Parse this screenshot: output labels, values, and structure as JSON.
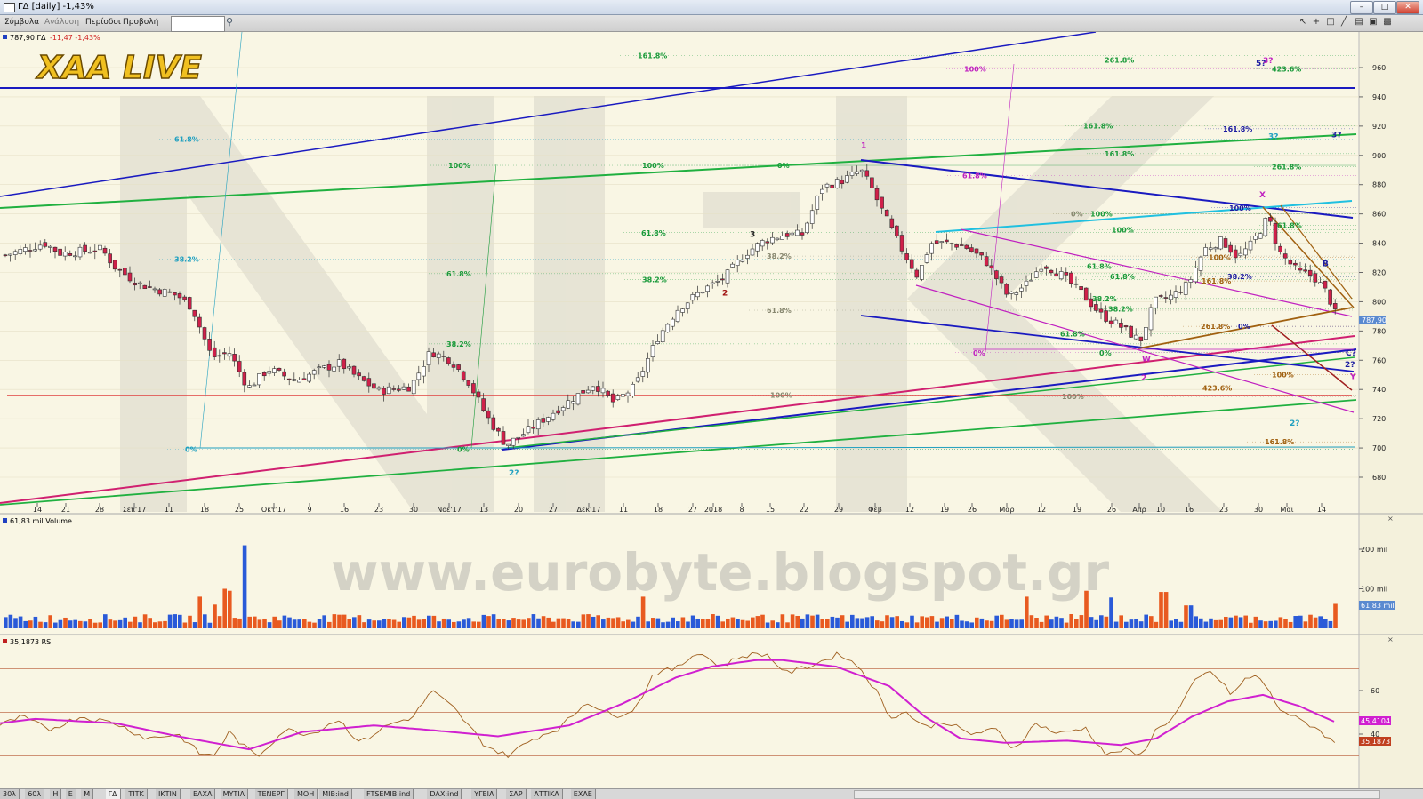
{
  "window": {
    "title": "ΓΔ [daily] -1,43%",
    "minimize": "–",
    "maximize": "□",
    "close": "✕"
  },
  "menu": {
    "items": [
      "Σύμβολα",
      "Ανάλυση",
      "Περίοδοι",
      "Προβολή"
    ],
    "symbol_value": ""
  },
  "toolbar": {
    "icons": [
      "cursor-icon",
      "crosshair-icon",
      "rectangle-icon",
      "line-icon",
      "layout-icon",
      "window-icon",
      "save-icon"
    ]
  },
  "price_panel": {
    "header": "787,90 ΓΔ",
    "change": "-11,47 -1,43%",
    "logo": "XAA LIVE",
    "watermark": "NK",
    "last_price_label": "787,90",
    "y_ticks": [
      {
        "v": 960,
        "t": "960"
      },
      {
        "v": 940,
        "t": "940"
      },
      {
        "v": 920,
        "t": "920"
      },
      {
        "v": 900,
        "t": "900"
      },
      {
        "v": 880,
        "t": "880"
      },
      {
        "v": 860,
        "t": "860"
      },
      {
        "v": 840,
        "t": "840"
      },
      {
        "v": 820,
        "t": "820"
      },
      {
        "v": 800,
        "t": "800"
      },
      {
        "v": 780,
        "t": "780"
      },
      {
        "v": 760,
        "t": "760"
      },
      {
        "v": 740,
        "t": "740"
      },
      {
        "v": 720,
        "t": "720"
      },
      {
        "v": 700,
        "t": "700"
      },
      {
        "v": 680,
        "t": "680"
      }
    ],
    "x_labels": [
      {
        "x": 42,
        "t": "14"
      },
      {
        "x": 74,
        "t": "21"
      },
      {
        "x": 112,
        "t": "28"
      },
      {
        "x": 151,
        "t": "Σεπ'17"
      },
      {
        "x": 190,
        "t": "11"
      },
      {
        "x": 230,
        "t": "18"
      },
      {
        "x": 269,
        "t": "25"
      },
      {
        "x": 308,
        "t": "Οκτ'17"
      },
      {
        "x": 348,
        "t": "9"
      },
      {
        "x": 387,
        "t": "16"
      },
      {
        "x": 426,
        "t": "23"
      },
      {
        "x": 465,
        "t": "30"
      },
      {
        "x": 505,
        "t": "Νοε'17"
      },
      {
        "x": 544,
        "t": "13"
      },
      {
        "x": 583,
        "t": "20"
      },
      {
        "x": 622,
        "t": "27"
      },
      {
        "x": 662,
        "t": "Δεκ'17"
      },
      {
        "x": 701,
        "t": "11"
      },
      {
        "x": 740,
        "t": "18"
      },
      {
        "x": 779,
        "t": "27"
      },
      {
        "x": 802,
        "t": "2018"
      },
      {
        "x": 834,
        "t": "8"
      },
      {
        "x": 866,
        "t": "15"
      },
      {
        "x": 904,
        "t": "22"
      },
      {
        "x": 943,
        "t": "29"
      },
      {
        "x": 984,
        "t": "Φεβ"
      },
      {
        "x": 1023,
        "t": "12"
      },
      {
        "x": 1062,
        "t": "19"
      },
      {
        "x": 1093,
        "t": "26"
      },
      {
        "x": 1132,
        "t": "Μαρ"
      },
      {
        "x": 1171,
        "t": "12"
      },
      {
        "x": 1211,
        "t": "19"
      },
      {
        "x": 1250,
        "t": "26"
      },
      {
        "x": 1281,
        "t": "Απρ"
      },
      {
        "x": 1305,
        "t": "10"
      },
      {
        "x": 1337,
        "t": "16"
      },
      {
        "x": 1376,
        "t": "23"
      },
      {
        "x": 1415,
        "t": "30"
      },
      {
        "x": 1447,
        "t": "Μαι"
      },
      {
        "x": 1486,
        "t": "14"
      }
    ],
    "fib_labels": [
      {
        "x": 717,
        "v": 970,
        "t": "161.8%",
        "c": "#1a9a3a"
      },
      {
        "x": 1242,
        "v": 967,
        "t": "261.8%",
        "c": "#1a9a3a"
      },
      {
        "x": 1084,
        "v": 961,
        "t": "100%",
        "c": "#c020c0"
      },
      {
        "x": 1430,
        "v": 961,
        "t": "423.6%",
        "c": "#1a9a3a"
      },
      {
        "x": 196,
        "v": 913,
        "t": "61.8%",
        "c": "#20a0c0"
      },
      {
        "x": 1218,
        "v": 922,
        "t": "161.8%",
        "c": "#1a9a3a"
      },
      {
        "x": 1375,
        "v": 920,
        "t": "161.8%",
        "c": "#1a1aa0"
      },
      {
        "x": 1242,
        "v": 903,
        "t": "161.8%",
        "c": "#1a9a3a"
      },
      {
        "x": 504,
        "v": 895,
        "t": "100%",
        "c": "#1a9a3a"
      },
      {
        "x": 722,
        "v": 895,
        "t": "100%",
        "c": "#1a9a3a"
      },
      {
        "x": 874,
        "v": 895,
        "t": "0%",
        "c": "#1a9a3a"
      },
      {
        "x": 1430,
        "v": 894,
        "t": "261.8%",
        "c": "#1a9a3a"
      },
      {
        "x": 1082,
        "v": 888,
        "t": "61.8%",
        "c": "#c020c0"
      },
      {
        "x": 1382,
        "v": 866,
        "t": "100%",
        "c": "#1a1aa0"
      },
      {
        "x": 1204,
        "v": 862,
        "t": "0%",
        "c": "#888870"
      },
      {
        "x": 1226,
        "v": 862,
        "t": "100%",
        "c": "#1a9a3a"
      },
      {
        "x": 1436,
        "v": 854,
        "t": "61.8%",
        "c": "#1a9a3a"
      },
      {
        "x": 1250,
        "v": 851,
        "t": "100%",
        "c": "#1a9a3a"
      },
      {
        "x": 721,
        "v": 849,
        "t": "61.8%",
        "c": "#1a9a3a"
      },
      {
        "x": 196,
        "v": 831,
        "t": "38.2%",
        "c": "#20a0c0"
      },
      {
        "x": 862,
        "v": 833,
        "t": "38.2%",
        "c": "#888870"
      },
      {
        "x": 1359,
        "v": 832,
        "t": "100%",
        "c": "#a06010"
      },
      {
        "x": 1222,
        "v": 826,
        "t": "61.8%",
        "c": "#1a9a3a"
      },
      {
        "x": 502,
        "v": 821,
        "t": "61.8%",
        "c": "#1a9a3a"
      },
      {
        "x": 1248,
        "v": 819,
        "t": "61.8%",
        "c": "#1a9a3a"
      },
      {
        "x": 1380,
        "v": 819,
        "t": "38.2%",
        "c": "#1a1aa0"
      },
      {
        "x": 722,
        "v": 817,
        "t": "38.2%",
        "c": "#1a9a3a"
      },
      {
        "x": 1351,
        "v": 816,
        "t": "161.8%",
        "c": "#a06010"
      },
      {
        "x": 1228,
        "v": 804,
        "t": "38.2%",
        "c": "#1a9a3a"
      },
      {
        "x": 1246,
        "v": 797,
        "t": "38.2%",
        "c": "#1a9a3a"
      },
      {
        "x": 862,
        "v": 796,
        "t": "61.8%",
        "c": "#888870"
      },
      {
        "x": 1350,
        "v": 785,
        "t": "261.8%",
        "c": "#a06010"
      },
      {
        "x": 1392,
        "v": 785,
        "t": "0%",
        "c": "#1a1aa0"
      },
      {
        "x": 1192,
        "v": 780,
        "t": "61.8%",
        "c": "#1a9a3a"
      },
      {
        "x": 502,
        "v": 773,
        "t": "38.2%",
        "c": "#1a9a3a"
      },
      {
        "x": 1094,
        "v": 767,
        "t": "0%",
        "c": "#c020c0"
      },
      {
        "x": 1236,
        "v": 767,
        "t": "0%",
        "c": "#1a9a3a"
      },
      {
        "x": 1430,
        "v": 752,
        "t": "100%",
        "c": "#a06010"
      },
      {
        "x": 1352,
        "v": 743,
        "t": "423.6%",
        "c": "#a06010"
      },
      {
        "x": 866,
        "v": 738,
        "t": "100%",
        "c": "#888870"
      },
      {
        "x": 1194,
        "v": 737,
        "t": "100%",
        "c": "#888870"
      },
      {
        "x": 208,
        "v": 701,
        "t": "0%",
        "c": "#20a0c0"
      },
      {
        "x": 514,
        "v": 701,
        "t": "0%",
        "c": "#1a9a3a"
      },
      {
        "x": 1422,
        "v": 706,
        "t": "161.8%",
        "c": "#a06010"
      }
    ],
    "wave_labels": [
      {
        "x": 968,
        "v": 907,
        "t": "1",
        "c": "#c020c0"
      },
      {
        "x": 1412,
        "v": 963,
        "t": "5?",
        "c": "#1a1aa0"
      },
      {
        "x": 1420,
        "v": 965,
        "t": "3?",
        "c": "#c020c0"
      },
      {
        "x": 1426,
        "v": 913,
        "t": "3?",
        "c": "#20a0c0"
      },
      {
        "x": 1497,
        "v": 914,
        "t": "3?",
        "c": "#1a1aa0"
      },
      {
        "x": 1416,
        "v": 873,
        "t": "X",
        "c": "#c020c0"
      },
      {
        "x": 843,
        "v": 846,
        "t": "3",
        "c": "#202020"
      },
      {
        "x": 812,
        "v": 806,
        "t": "2",
        "c": "#a01010"
      },
      {
        "x": 1487,
        "v": 826,
        "t": "B",
        "c": "#1a1aa0"
      },
      {
        "x": 1513,
        "v": 765,
        "t": "C?",
        "c": "#1a1aa0"
      },
      {
        "x": 1512,
        "v": 757,
        "t": "2?",
        "c": "#1a1aa0"
      },
      {
        "x": 1518,
        "v": 749,
        "t": "Y",
        "c": "#c020c0"
      },
      {
        "x": 1284,
        "v": 761,
        "t": "W",
        "c": "#c020c0"
      },
      {
        "x": 1283,
        "v": 748,
        "t": "2",
        "c": "#c020c0"
      },
      {
        "x": 1450,
        "v": 717,
        "t": "2?",
        "c": "#20a0c0"
      },
      {
        "x": 572,
        "v": 683,
        "t": "2?",
        "c": "#20a0c0"
      }
    ]
  },
  "volume_panel": {
    "header": "61,83 mil Volume",
    "watermark": "www.eurobyte.blogspot.gr",
    "last_value_label": "61,83 mil",
    "y_ticks": [
      {
        "v": 200,
        "t": "200 mil"
      },
      {
        "v": 100,
        "t": "100 mil"
      }
    ]
  },
  "rsi_panel": {
    "header": "35,1873 RSI",
    "y_ticks": [
      {
        "v": 60,
        "t": "60"
      },
      {
        "v": 40,
        "t": "40"
      }
    ],
    "ma_value_label": "45,4104",
    "rsi_value_label": "35,1873"
  },
  "bottom_tabs": [
    "30λ",
    "60λ",
    "Η",
    "Ε",
    "Μ",
    "ΓΔ",
    "ΤΙΤΚ",
    "ΙΚΤΙΝ",
    "ΕΛΧΑ",
    "ΜΥΤΙΛ",
    "ΤΕΝΕΡΓ",
    "ΜΟΗ",
    "MIB:ind",
    "FTSEMIB:ind",
    "DAX:ind",
    "ΥΓΕΙΑ",
    "ΣΑΡ",
    "ΑΤΤΙΚΑ",
    "ΕΧΑΕ"
  ],
  "chart_data": [
    {
      "type": "candlestick",
      "title": "ΓΔ [daily]",
      "ylim": [
        670,
        975
      ],
      "last": 787.9,
      "anchors": [
        [
          0,
          831
        ],
        [
          48,
          840
        ],
        [
          66,
          833
        ],
        [
          112,
          836
        ],
        [
          128,
          823
        ],
        [
          155,
          812
        ],
        [
          198,
          804
        ],
        [
          214,
          796
        ],
        [
          236,
          762
        ],
        [
          256,
          765
        ],
        [
          277,
          741
        ],
        [
          300,
          754
        ],
        [
          330,
          746
        ],
        [
          356,
          753
        ],
        [
          380,
          758
        ],
        [
          400,
          748
        ],
        [
          424,
          739
        ],
        [
          460,
          742
        ],
        [
          482,
          766
        ],
        [
          505,
          760
        ],
        [
          525,
          745
        ],
        [
          545,
          722
        ],
        [
          567,
          702
        ],
        [
          592,
          712
        ],
        [
          610,
          720
        ],
        [
          640,
          733
        ],
        [
          666,
          744
        ],
        [
          688,
          731
        ],
        [
          712,
          742
        ],
        [
          738,
          776
        ],
        [
          760,
          795
        ],
        [
          788,
          808
        ],
        [
          812,
          816
        ],
        [
          836,
          833
        ],
        [
          858,
          842
        ],
        [
          880,
          846
        ],
        [
          900,
          846
        ],
        [
          922,
          878
        ],
        [
          946,
          883
        ],
        [
          966,
          890
        ],
        [
          976,
          880
        ],
        [
          990,
          862
        ],
        [
          1010,
          838
        ],
        [
          1030,
          817
        ],
        [
          1044,
          840
        ],
        [
          1062,
          840
        ],
        [
          1082,
          838
        ],
        [
          1106,
          828
        ],
        [
          1132,
          803
        ],
        [
          1152,
          812
        ],
        [
          1170,
          826
        ],
        [
          1192,
          818
        ],
        [
          1214,
          806
        ],
        [
          1236,
          791
        ],
        [
          1256,
          784
        ],
        [
          1280,
          773
        ],
        [
          1296,
          800
        ],
        [
          1316,
          804
        ],
        [
          1334,
          812
        ],
        [
          1352,
          836
        ],
        [
          1372,
          842
        ],
        [
          1390,
          830
        ],
        [
          1406,
          840
        ],
        [
          1424,
          858
        ],
        [
          1436,
          834
        ],
        [
          1458,
          820
        ],
        [
          1474,
          818
        ],
        [
          1490,
          806
        ],
        [
          1502,
          787.9
        ]
      ]
    },
    {
      "type": "bar",
      "title": "Volume",
      "ylim": [
        0,
        260
      ],
      "last": 61.83,
      "peaks": [
        [
          275,
          210
        ],
        [
          256,
          95
        ],
        [
          248,
          100
        ],
        [
          221,
          80
        ],
        [
          237,
          60
        ],
        [
          1221,
          95
        ],
        [
          1334,
          58
        ],
        [
          1306,
          92
        ],
        [
          1248,
          78
        ],
        [
          1152,
          80
        ],
        [
          722,
          80
        ]
      ]
    },
    {
      "type": "line",
      "title": "RSI",
      "ylim": [
        20,
        80
      ],
      "rsi_last": 35.1873,
      "ma_last": 45.4104,
      "ma_anchors": [
        [
          0,
          45
        ],
        [
          40,
          47
        ],
        [
          130,
          45
        ],
        [
          200,
          39
        ],
        [
          280,
          33
        ],
        [
          340,
          41
        ],
        [
          420,
          44
        ],
        [
          480,
          42
        ],
        [
          560,
          39
        ],
        [
          640,
          44
        ],
        [
          700,
          54
        ],
        [
          760,
          66
        ],
        [
          800,
          71
        ],
        [
          850,
          74
        ],
        [
          880,
          74
        ],
        [
          940,
          71
        ],
        [
          1000,
          62
        ],
        [
          1040,
          48
        ],
        [
          1080,
          38
        ],
        [
          1130,
          36
        ],
        [
          1200,
          37
        ],
        [
          1260,
          35
        ],
        [
          1300,
          38
        ],
        [
          1340,
          48
        ],
        [
          1380,
          55
        ],
        [
          1420,
          58
        ],
        [
          1460,
          53
        ],
        [
          1502,
          45.4
        ]
      ],
      "rsi_anchors": [
        [
          0,
          44
        ],
        [
          25,
          48
        ],
        [
          55,
          42
        ],
        [
          90,
          48
        ],
        [
          130,
          45
        ],
        [
          165,
          38
        ],
        [
          200,
          40
        ],
        [
          225,
          31
        ],
        [
          240,
          30
        ],
        [
          258,
          41
        ],
        [
          275,
          34
        ],
        [
          290,
          30
        ],
        [
          320,
          42
        ],
        [
          350,
          40
        ],
        [
          380,
          47
        ],
        [
          405,
          36
        ],
        [
          435,
          44
        ],
        [
          465,
          48
        ],
        [
          485,
          60
        ],
        [
          510,
          52
        ],
        [
          545,
          35
        ],
        [
          570,
          30
        ],
        [
          600,
          38
        ],
        [
          630,
          43
        ],
        [
          660,
          55
        ],
        [
          690,
          48
        ],
        [
          715,
          52
        ],
        [
          735,
          68
        ],
        [
          760,
          70
        ],
        [
          785,
          78
        ],
        [
          810,
          71
        ],
        [
          835,
          76
        ],
        [
          860,
          77
        ],
        [
          885,
          68
        ],
        [
          915,
          72
        ],
        [
          945,
          77
        ],
        [
          968,
          70
        ],
        [
          985,
          60
        ],
        [
          1000,
          48
        ],
        [
          1020,
          50
        ],
        [
          1040,
          43
        ],
        [
          1062,
          46
        ],
        [
          1090,
          40
        ],
        [
          1120,
          42
        ],
        [
          1140,
          33
        ],
        [
          1165,
          45
        ],
        [
          1190,
          40
        ],
        [
          1220,
          43
        ],
        [
          1245,
          30
        ],
        [
          1262,
          33
        ],
        [
          1282,
          30
        ],
        [
          1300,
          42
        ],
        [
          1320,
          48
        ],
        [
          1345,
          65
        ],
        [
          1362,
          69
        ],
        [
          1385,
          58
        ],
        [
          1400,
          65
        ],
        [
          1415,
          67
        ],
        [
          1438,
          52
        ],
        [
          1458,
          47
        ],
        [
          1480,
          43
        ],
        [
          1502,
          35.2
        ]
      ]
    }
  ]
}
